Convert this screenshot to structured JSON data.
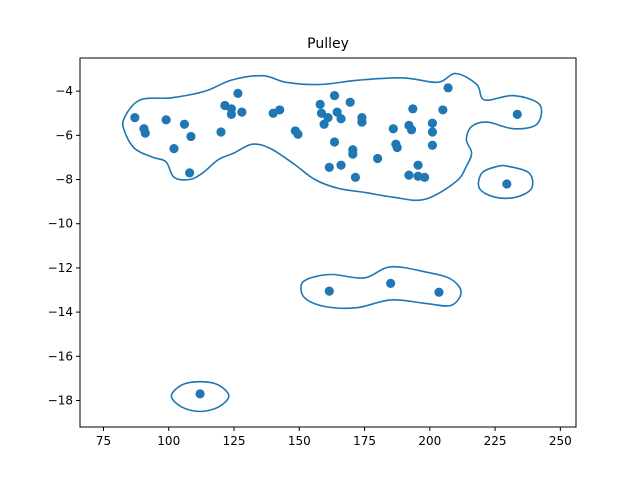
{
  "chart_data": {
    "type": "scatter",
    "title": "Pulley",
    "xlabel": "",
    "ylabel": "",
    "xlim": [
      66,
      256
    ],
    "ylim": [
      -19.2,
      -2.5
    ],
    "xticks": [
      75,
      100,
      125,
      150,
      175,
      200,
      225,
      250
    ],
    "yticks": [
      -4,
      -6,
      -8,
      -10,
      -12,
      -14,
      -16,
      -18
    ],
    "grid": false,
    "colors": {
      "points": "#1f77b4",
      "contours": "#1f77b4"
    },
    "points": [
      {
        "x": 87,
        "y": -5.2
      },
      {
        "x": 90.5,
        "y": -5.7
      },
      {
        "x": 91,
        "y": -5.9
      },
      {
        "x": 99,
        "y": -5.3
      },
      {
        "x": 102,
        "y": -6.6
      },
      {
        "x": 106,
        "y": -5.5
      },
      {
        "x": 108.5,
        "y": -6.05
      },
      {
        "x": 108,
        "y": -7.7
      },
      {
        "x": 120,
        "y": -5.85
      },
      {
        "x": 121.5,
        "y": -4.65
      },
      {
        "x": 124,
        "y": -4.8
      },
      {
        "x": 124,
        "y": -5.05
      },
      {
        "x": 126.5,
        "y": -4.1
      },
      {
        "x": 128,
        "y": -4.95
      },
      {
        "x": 140,
        "y": -5.0
      },
      {
        "x": 142.5,
        "y": -4.85
      },
      {
        "x": 148.5,
        "y": -5.8
      },
      {
        "x": 149.5,
        "y": -5.95
      },
      {
        "x": 158,
        "y": -4.6
      },
      {
        "x": 158.5,
        "y": -5.0
      },
      {
        "x": 159.5,
        "y": -5.5
      },
      {
        "x": 161,
        "y": -5.2
      },
      {
        "x": 161.5,
        "y": -7.45
      },
      {
        "x": 163.5,
        "y": -4.2
      },
      {
        "x": 163.5,
        "y": -6.3
      },
      {
        "x": 164.5,
        "y": -4.95
      },
      {
        "x": 166,
        "y": -5.25
      },
      {
        "x": 166,
        "y": -7.35
      },
      {
        "x": 169.5,
        "y": -4.5
      },
      {
        "x": 170.5,
        "y": -6.65
      },
      {
        "x": 170.5,
        "y": -6.85
      },
      {
        "x": 171.5,
        "y": -7.9
      },
      {
        "x": 174,
        "y": -5.2
      },
      {
        "x": 174,
        "y": -5.4
      },
      {
        "x": 180,
        "y": -7.05
      },
      {
        "x": 186,
        "y": -5.7
      },
      {
        "x": 187,
        "y": -6.4
      },
      {
        "x": 187.5,
        "y": -6.55
      },
      {
        "x": 192,
        "y": -5.55
      },
      {
        "x": 192,
        "y": -7.8
      },
      {
        "x": 193,
        "y": -5.75
      },
      {
        "x": 193.5,
        "y": -4.8
      },
      {
        "x": 195.5,
        "y": -7.35
      },
      {
        "x": 195.5,
        "y": -7.85
      },
      {
        "x": 198,
        "y": -7.9
      },
      {
        "x": 201,
        "y": -5.45
      },
      {
        "x": 201,
        "y": -5.85
      },
      {
        "x": 201,
        "y": -6.45
      },
      {
        "x": 205,
        "y": -4.85
      },
      {
        "x": 207,
        "y": -3.85
      },
      {
        "x": 229.5,
        "y": -8.2
      },
      {
        "x": 233.5,
        "y": -5.05
      },
      {
        "x": 161.5,
        "y": -13.05
      },
      {
        "x": 185,
        "y": -12.7
      },
      {
        "x": 203.5,
        "y": -13.1
      },
      {
        "x": 112,
        "y": -17.7
      }
    ],
    "contours": [
      [
        [
          83,
          -5.2
        ],
        [
          89,
          -4.4
        ],
        [
          101,
          -4.3
        ],
        [
          114,
          -4.0
        ],
        [
          124,
          -3.5
        ],
        [
          136,
          -3.3
        ],
        [
          145,
          -3.6
        ],
        [
          158,
          -3.7
        ],
        [
          173,
          -3.5
        ],
        [
          190,
          -3.4
        ],
        [
          203,
          -3.6
        ],
        [
          210,
          -3.2
        ],
        [
          218,
          -3.7
        ],
        [
          221,
          -4.4
        ],
        [
          232,
          -4.2
        ],
        [
          242,
          -4.6
        ],
        [
          241,
          -5.5
        ],
        [
          232,
          -5.7
        ],
        [
          222,
          -5.4
        ],
        [
          216,
          -5.6
        ],
        [
          214,
          -6.2
        ],
        [
          216,
          -6.8
        ],
        [
          214,
          -7.4
        ],
        [
          210,
          -8.1
        ],
        [
          198,
          -8.9
        ],
        [
          186,
          -8.8
        ],
        [
          176,
          -8.6
        ],
        [
          165,
          -8.4
        ],
        [
          156,
          -8.0
        ],
        [
          148,
          -7.3
        ],
        [
          139,
          -6.6
        ],
        [
          132,
          -6.4
        ],
        [
          125,
          -6.8
        ],
        [
          119,
          -7.1
        ],
        [
          113,
          -7.7
        ],
        [
          108,
          -8.0
        ],
        [
          102,
          -7.9
        ],
        [
          99,
          -7.2
        ],
        [
          94,
          -7.0
        ],
        [
          87,
          -6.6
        ],
        [
          83,
          -5.8
        ]
      ],
      [
        [
          230,
          -7.4
        ],
        [
          238,
          -7.7
        ],
        [
          239,
          -8.4
        ],
        [
          233,
          -8.8
        ],
        [
          225,
          -8.8
        ],
        [
          219,
          -8.4
        ],
        [
          220,
          -7.7
        ],
        [
          226,
          -7.4
        ]
      ],
      [
        [
          163,
          -12.3
        ],
        [
          175,
          -12.45
        ],
        [
          185,
          -11.95
        ],
        [
          199,
          -12.2
        ],
        [
          208,
          -12.5
        ],
        [
          212,
          -13.1
        ],
        [
          208,
          -13.7
        ],
        [
          198,
          -13.6
        ],
        [
          185,
          -13.45
        ],
        [
          172,
          -13.8
        ],
        [
          160,
          -13.75
        ],
        [
          152,
          -13.35
        ],
        [
          151,
          -12.7
        ],
        [
          156,
          -12.4
        ]
      ],
      [
        [
          112,
          -17.15
        ],
        [
          119,
          -17.3
        ],
        [
          123,
          -17.8
        ],
        [
          119,
          -18.3
        ],
        [
          112,
          -18.5
        ],
        [
          105,
          -18.3
        ],
        [
          101,
          -17.8
        ],
        [
          105,
          -17.3
        ]
      ]
    ]
  }
}
